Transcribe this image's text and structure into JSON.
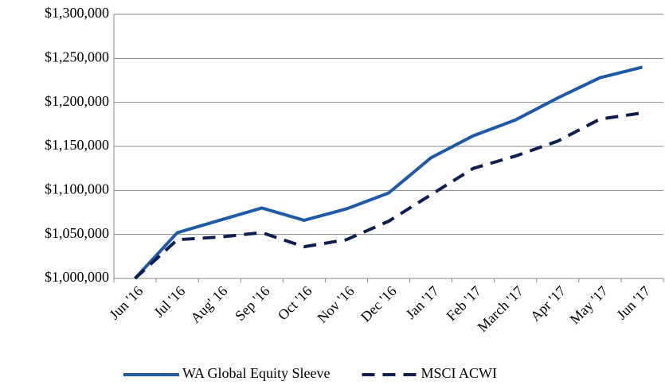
{
  "chart_data": {
    "type": "line",
    "categories": [
      "Jun '16",
      "Jul '16",
      "Aug' 16",
      "Sep '16",
      "Oct '16",
      "Nov '16",
      "Dec '16",
      "Jan '17",
      "Feb '17",
      "March '17",
      "Apr '17",
      "May '17",
      "Jun '17"
    ],
    "series": [
      {
        "name": "WA Global Equity Sleeve",
        "color": "#1f5aa6",
        "dash": false,
        "values": [
          1000000,
          1052000,
          1066000,
          1080000,
          1066000,
          1079000,
          1097000,
          1137000,
          1162000,
          1180000,
          1205000,
          1228000,
          1240000
        ]
      },
      {
        "name": "MSCI ACWI",
        "color": "#0d1f4f",
        "dash": true,
        "values": [
          1000000,
          1044000,
          1047000,
          1052000,
          1036000,
          1044000,
          1065000,
          1095000,
          1125000,
          1139000,
          1156000,
          1181000,
          1188000
        ]
      }
    ],
    "ylim": [
      1000000,
      1300000
    ],
    "yticks": [
      {
        "value": 1000000,
        "label": "$1,000,000"
      },
      {
        "value": 1050000,
        "label": "$1,050,000"
      },
      {
        "value": 1100000,
        "label": "$1,100,000"
      },
      {
        "value": 1150000,
        "label": "$1,150,000"
      },
      {
        "value": 1200000,
        "label": "$1,200,000"
      },
      {
        "value": 1250000,
        "label": "$1,250,000"
      },
      {
        "value": 1300000,
        "label": "$1,300,000"
      }
    ],
    "grid": true,
    "legend": "bottom"
  }
}
